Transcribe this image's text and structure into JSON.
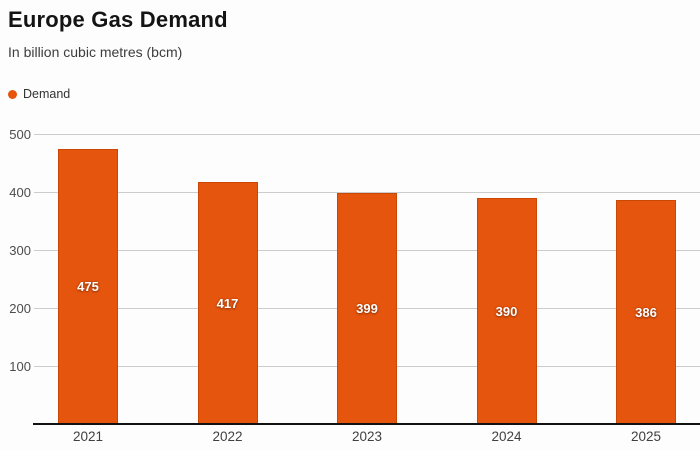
{
  "header": {
    "title": "Europe Gas Demand",
    "subtitle": "In billion cubic metres (bcm)"
  },
  "legend": {
    "label": "Demand"
  },
  "colors": {
    "bar": "#e6550d",
    "grid": "#cccccc",
    "axis": "#111111",
    "bar_label": "#ffffff"
  },
  "chart_data": {
    "type": "bar",
    "title": "Europe Gas Demand",
    "subtitle": "In billion cubic metres (bcm)",
    "categories": [
      "2021",
      "2022",
      "2023",
      "2024",
      "2025"
    ],
    "series": [
      {
        "name": "Demand",
        "values": [
          475,
          417,
          399,
          390,
          386
        ]
      }
    ],
    "bar_labels": [
      "475",
      "417",
      "399",
      "390",
      "386"
    ],
    "xlabel": "",
    "ylabel": "",
    "ylim": [
      0,
      500
    ],
    "yticks": [
      100,
      200,
      300,
      400,
      500
    ],
    "grid": true,
    "legend_position": "top-left"
  }
}
